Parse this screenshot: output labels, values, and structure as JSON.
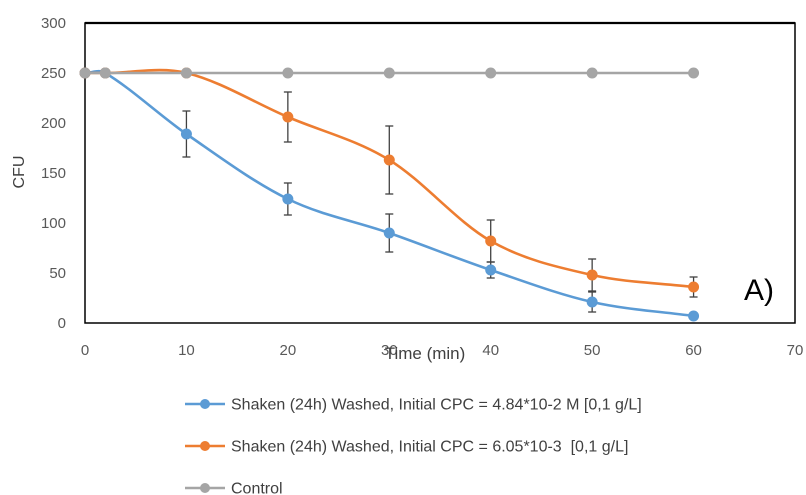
{
  "chart_data": {
    "type": "line",
    "smooth_lines": true,
    "xlabel": "Time (min)",
    "ylabel": "CFU",
    "xlim": [
      0,
      70
    ],
    "ylim": [
      0,
      300
    ],
    "xticks": [
      0,
      10,
      20,
      30,
      40,
      50,
      60,
      70
    ],
    "yticks": [
      0,
      50,
      100,
      150,
      200,
      250,
      300
    ],
    "grid": false,
    "legend_position": "bottom",
    "annotation": "A)",
    "x": [
      0,
      2,
      10,
      20,
      30,
      40,
      50,
      60
    ],
    "series": [
      {
        "name": "Shaken (24h) Washed, Initial CPC = 4.84*10-2 M [0,1 g/L]",
        "color": "#5B9BD5",
        "values": [
          250,
          250,
          189,
          124,
          90,
          53,
          21,
          7
        ],
        "error": [
          0,
          0,
          23,
          16,
          19,
          8,
          10,
          3
        ]
      },
      {
        "name": "Shaken (24h) Washed, Initial CPC = 6.05*10-3  [0,1 g/L]",
        "color": "#ED7D31",
        "values": [
          250,
          250,
          250,
          206,
          163,
          82,
          48,
          36
        ],
        "error": [
          0,
          0,
          0,
          25,
          34,
          21,
          16,
          10
        ]
      },
      {
        "name": "Control",
        "color": "#A5A5A5",
        "values": [
          250,
          250,
          250,
          250,
          250,
          250,
          250,
          250
        ]
      }
    ]
  }
}
